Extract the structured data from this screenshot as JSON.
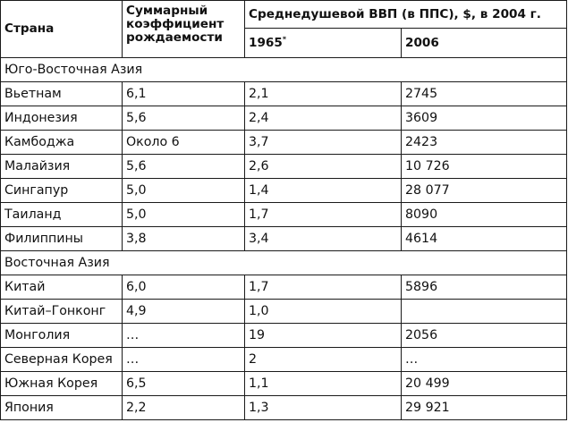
{
  "table": {
    "headers": {
      "country": "Страна",
      "fertility": "Суммарный коэффициент рождаемости",
      "gdp": "Среднедушевой ВВП (в ППС), $, в 2004 г.",
      "year1965": "1965",
      "year1965_mark": "*",
      "year2006": "2006"
    },
    "sections": [
      {
        "region": "Юго-Восточная Азия",
        "rows": [
          {
            "country": "Вьетнам",
            "fertility": "6,1",
            "gdp1965": "2,1",
            "gdp2006": "2745"
          },
          {
            "country": "Индонезия",
            "fertility": "5,6",
            "gdp1965": "2,4",
            "gdp2006": "3609"
          },
          {
            "country": "Камбоджа",
            "fertility": "Около 6",
            "gdp1965": "3,7",
            "gdp2006": "2423"
          },
          {
            "country": "Малайзия",
            "fertility": "5,6",
            "gdp1965": "2,6",
            "gdp2006": "10 726"
          },
          {
            "country": "Сингапур",
            "fertility": "5,0",
            "gdp1965": "1,4",
            "gdp2006": "28 077"
          },
          {
            "country": "Таиланд",
            "fertility": "5,0",
            "gdp1965": "1,7",
            "gdp2006": "8090"
          },
          {
            "country": "Филиппины",
            "fertility": "3,8",
            "gdp1965": "3,4",
            "gdp2006": "4614"
          }
        ]
      },
      {
        "region": "Восточная Азия",
        "rows": [
          {
            "country": "Китай",
            "fertility": "6,0",
            "gdp1965": "1,7",
            "gdp2006": "5896"
          },
          {
            "country": "Китай–Гонконг",
            "fertility": "4,9",
            "gdp1965": "1,0",
            "gdp2006": ""
          },
          {
            "country": "Монголия",
            "fertility": "…",
            "gdp1965": "19",
            "gdp2006": "2056"
          },
          {
            "country": "Северная Корея",
            "fertility": "…",
            "gdp1965": "2",
            "gdp2006": "…"
          },
          {
            "country": "Южная Корея",
            "fertility": "6,5",
            "gdp1965": "1,1",
            "gdp2006": "20 499"
          },
          {
            "country": "Япония",
            "fertility": "2,2",
            "gdp1965": "1,3",
            "gdp2006": "29 921"
          }
        ]
      }
    ]
  }
}
